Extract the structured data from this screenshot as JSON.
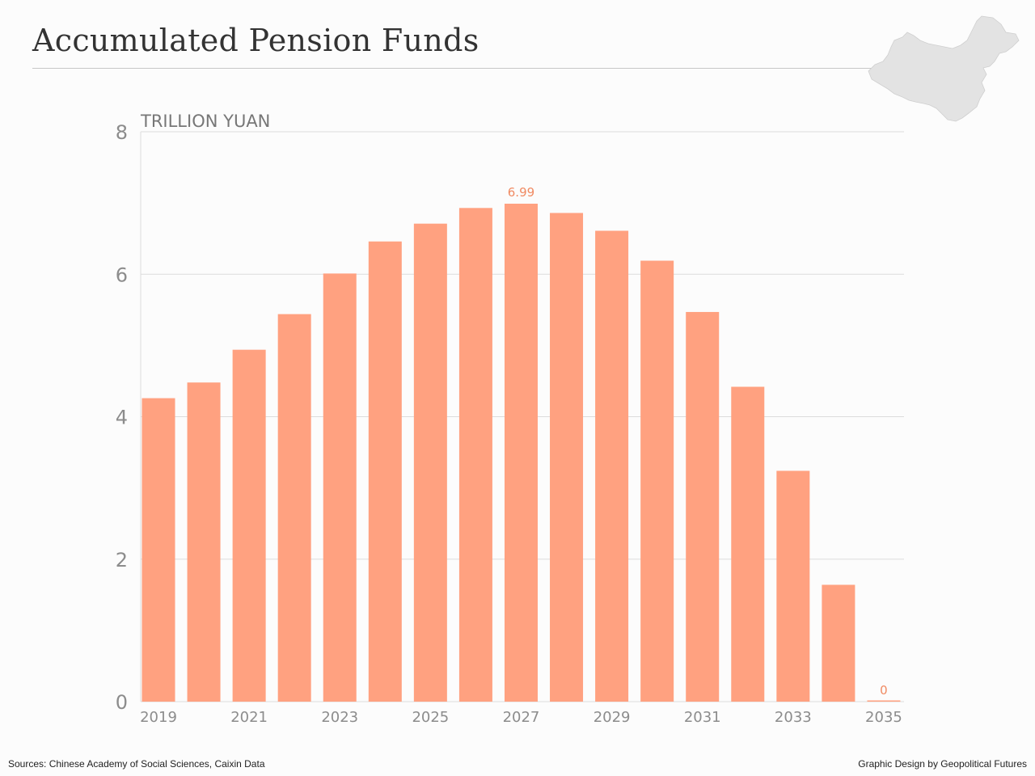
{
  "header": {
    "title": "Accumulated Pension Funds"
  },
  "footer": {
    "sources": "Sources: Chinese Academy of Social Sciences, Caixin Data",
    "credit": "Graphic Design by Geopolitical Futures"
  },
  "colors": {
    "bar": "#ffa180",
    "label": "#f08a62",
    "axis_text": "#8c8c8c",
    "grid": "#dcdcdc",
    "map": "#e3e3e3"
  },
  "chart_data": {
    "type": "bar",
    "title": "Accumulated Pension Funds",
    "ylabel": "TRILLION YUAN",
    "xlabel": "",
    "ylim": [
      0,
      8
    ],
    "yticks": [
      0,
      2,
      4,
      6,
      8
    ],
    "grid": true,
    "categories": [
      "2019",
      "2020",
      "2021",
      "2022",
      "2023",
      "2024",
      "2025",
      "2026",
      "2027",
      "2028",
      "2029",
      "2030",
      "2031",
      "2032",
      "2033",
      "2034",
      "2035"
    ],
    "xtick_labels": [
      "2019",
      "",
      "2021",
      "",
      "2023",
      "",
      "2025",
      "",
      "2027",
      "",
      "2029",
      "",
      "2031",
      "",
      "2033",
      "",
      "2035"
    ],
    "values": [
      4.26,
      4.48,
      4.94,
      5.44,
      6.01,
      6.46,
      6.71,
      6.93,
      6.99,
      6.86,
      6.61,
      6.19,
      5.47,
      4.42,
      3.24,
      1.64,
      0
    ],
    "data_labels": [
      {
        "category": "2027",
        "text": "6.99"
      },
      {
        "category": "2035",
        "text": "0"
      }
    ]
  }
}
